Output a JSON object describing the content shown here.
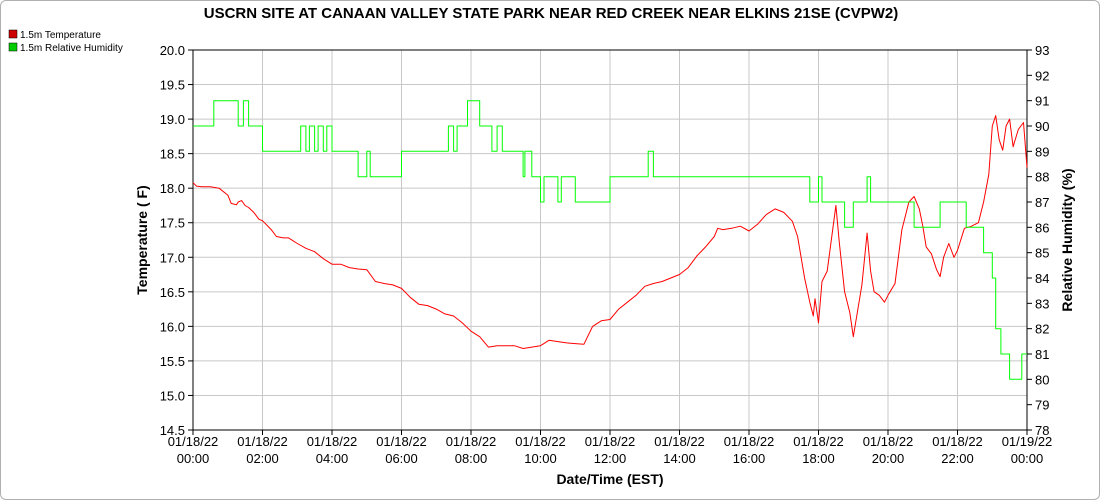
{
  "chart_data": {
    "type": "line",
    "title": "USCRN SITE AT CANAAN VALLEY STATE PARK NEAR RED CREEK NEAR ELKINS 21SE (CVPW2)",
    "xlabel": "Date/Time (EST)",
    "ylabel_left": "Temperature ( F)",
    "ylabel_right": "Relative Humidity (%)",
    "ylim_left": [
      14.5,
      20.0
    ],
    "ylim_right": [
      78,
      93
    ],
    "yticks_left": [
      "14.5",
      "15.0",
      "15.5",
      "16.0",
      "16.5",
      "17.0",
      "17.5",
      "18.0",
      "18.5",
      "19.0",
      "19.5",
      "20.0"
    ],
    "yticks_right": [
      "78",
      "79",
      "80",
      "81",
      "82",
      "83",
      "84",
      "85",
      "86",
      "87",
      "88",
      "89",
      "90",
      "91",
      "92",
      "93"
    ],
    "xlim": [
      0,
      24
    ],
    "xticks": [
      {
        "date": "01/18/22",
        "time": "00:00"
      },
      {
        "date": "01/18/22",
        "time": "02:00"
      },
      {
        "date": "01/18/22",
        "time": "04:00"
      },
      {
        "date": "01/18/22",
        "time": "06:00"
      },
      {
        "date": "01/18/22",
        "time": "08:00"
      },
      {
        "date": "01/18/22",
        "time": "10:00"
      },
      {
        "date": "01/18/22",
        "time": "12:00"
      },
      {
        "date": "01/18/22",
        "time": "14:00"
      },
      {
        "date": "01/18/22",
        "time": "16:00"
      },
      {
        "date": "01/18/22",
        "time": "18:00"
      },
      {
        "date": "01/18/22",
        "time": "20:00"
      },
      {
        "date": "01/18/22",
        "time": "22:00"
      },
      {
        "date": "01/19/22",
        "time": "00:00"
      }
    ],
    "grid": true,
    "legend_position": "top-left",
    "series": [
      {
        "name": "1.5m Temperature",
        "color": "#ff0000",
        "axis": "left",
        "x": [
          0,
          0.1,
          0.25,
          0.5,
          0.75,
          1.0,
          1.1,
          1.25,
          1.3,
          1.4,
          1.5,
          1.6,
          1.75,
          1.9,
          2.0,
          2.25,
          2.4,
          2.6,
          2.75,
          3.0,
          3.25,
          3.5,
          3.75,
          4.0,
          4.25,
          4.5,
          4.75,
          5.0,
          5.25,
          5.5,
          5.75,
          6.0,
          6.25,
          6.5,
          6.75,
          7.0,
          7.25,
          7.5,
          7.75,
          8.0,
          8.25,
          8.5,
          8.75,
          9.0,
          9.25,
          9.5,
          9.75,
          10.0,
          10.25,
          10.5,
          10.75,
          11.0,
          11.25,
          11.5,
          11.75,
          12.0,
          12.25,
          12.5,
          12.75,
          13.0,
          13.25,
          13.5,
          13.75,
          14.0,
          14.25,
          14.5,
          14.75,
          15.0,
          15.1,
          15.25,
          15.5,
          15.75,
          16.0,
          16.25,
          16.5,
          16.75,
          17.0,
          17.25,
          17.4,
          17.5,
          17.6,
          17.75,
          17.85,
          17.9,
          18.0,
          18.1,
          18.25,
          18.5,
          18.6,
          18.75,
          18.9,
          19.0,
          19.25,
          19.4,
          19.5,
          19.6,
          19.75,
          19.9,
          20.0,
          20.2,
          20.4,
          20.6,
          20.75,
          20.9,
          21.0,
          21.1,
          21.25,
          21.4,
          21.5,
          21.6,
          21.75,
          21.9,
          22.0,
          22.2,
          22.4,
          22.6,
          22.75,
          22.9,
          23.0,
          23.1,
          23.2,
          23.3,
          23.4,
          23.5,
          23.6,
          23.75,
          23.9,
          24.0
        ],
        "values": [
          18.08,
          18.03,
          18.02,
          18.02,
          18.0,
          17.9,
          17.78,
          17.76,
          17.8,
          17.82,
          17.75,
          17.72,
          17.65,
          17.55,
          17.53,
          17.4,
          17.3,
          17.28,
          17.28,
          17.2,
          17.13,
          17.08,
          16.98,
          16.9,
          16.9,
          16.85,
          16.83,
          16.82,
          16.65,
          16.62,
          16.6,
          16.55,
          16.42,
          16.32,
          16.3,
          16.25,
          16.18,
          16.15,
          16.05,
          15.93,
          15.85,
          15.7,
          15.72,
          15.72,
          15.72,
          15.68,
          15.7,
          15.72,
          15.8,
          15.78,
          15.76,
          15.75,
          15.74,
          16.0,
          16.08,
          16.1,
          16.25,
          16.35,
          16.45,
          16.58,
          16.62,
          16.65,
          16.7,
          16.75,
          16.85,
          17.02,
          17.15,
          17.3,
          17.42,
          17.4,
          17.42,
          17.45,
          17.38,
          17.48,
          17.62,
          17.7,
          17.65,
          17.52,
          17.3,
          17.0,
          16.7,
          16.35,
          16.15,
          16.4,
          16.05,
          16.65,
          16.8,
          17.75,
          17.2,
          16.5,
          16.2,
          15.85,
          16.6,
          17.35,
          16.8,
          16.5,
          16.45,
          16.35,
          16.45,
          16.62,
          17.4,
          17.8,
          17.88,
          17.7,
          17.45,
          17.15,
          17.05,
          16.82,
          16.72,
          17.0,
          17.2,
          17.0,
          17.1,
          17.42,
          17.45,
          17.5,
          17.8,
          18.2,
          18.9,
          19.05,
          18.7,
          18.55,
          18.9,
          19.0,
          18.6,
          18.85,
          18.95,
          18.3
        ]
      },
      {
        "name": "1.5m Relative Humidity",
        "color": "#00ff00",
        "axis": "right",
        "step": true,
        "x": [
          0,
          0.5,
          0.6,
          1.0,
          1.2,
          1.3,
          1.4,
          1.45,
          1.6,
          1.75,
          2.0,
          3.0,
          3.1,
          3.25,
          3.35,
          3.5,
          3.6,
          3.75,
          3.85,
          4.0,
          4.1,
          4.25,
          4.5,
          4.75,
          5.0,
          5.1,
          5.2,
          5.4,
          5.75,
          6.0,
          6.75,
          7.0,
          7.1,
          7.25,
          7.35,
          7.5,
          7.6,
          7.75,
          7.9,
          8.0,
          8.25,
          8.5,
          8.6,
          8.75,
          8.9,
          9.0,
          9.25,
          9.5,
          9.55,
          9.75,
          10.0,
          10.1,
          10.25,
          10.5,
          10.6,
          10.75,
          11.0,
          11.5,
          11.75,
          12.0,
          13.0,
          13.1,
          13.25,
          13.5,
          14.0,
          15.0,
          16.0,
          17.0,
          17.5,
          17.75,
          17.9,
          18.0,
          18.1,
          18.25,
          18.5,
          18.75,
          19.0,
          19.25,
          19.4,
          19.5,
          20.0,
          20.5,
          20.75,
          21.0,
          21.25,
          21.5,
          21.75,
          22.0,
          22.25,
          22.5,
          22.75,
          22.9,
          23.0,
          23.1,
          23.25,
          23.5,
          23.75,
          23.85,
          24.0
        ],
        "values": [
          90,
          90,
          91,
          91,
          91,
          90,
          90,
          91,
          90,
          90,
          89,
          89,
          90,
          89,
          90,
          89,
          90,
          89,
          90,
          89,
          89,
          89,
          89,
          88,
          89,
          88,
          88,
          88,
          88,
          89,
          89,
          89,
          89,
          89,
          90,
          89,
          90,
          90,
          91,
          91,
          90,
          90,
          89,
          90,
          89,
          89,
          89,
          88,
          89,
          88,
          87,
          88,
          88,
          87,
          88,
          88,
          87,
          87,
          87,
          88,
          88,
          89,
          88,
          88,
          88,
          88,
          88,
          88,
          88,
          87,
          87,
          88,
          87,
          87,
          87,
          86,
          87,
          87,
          88,
          87,
          87,
          87,
          86,
          86,
          86,
          87,
          87,
          87,
          86,
          86,
          85,
          85,
          84,
          82,
          81,
          80,
          80,
          81,
          81
        ]
      }
    ]
  }
}
